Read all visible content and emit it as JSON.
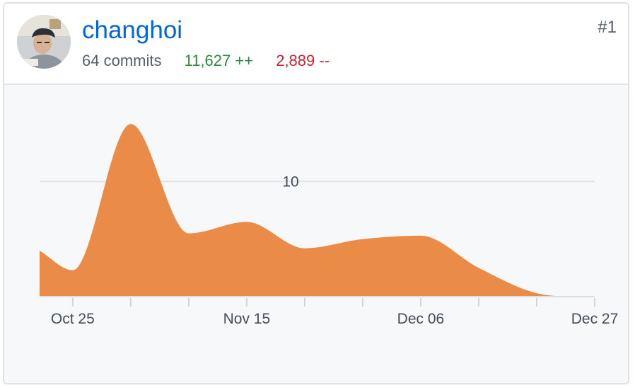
{
  "contributor": {
    "username": "changhoi",
    "commits": "64 commits",
    "additions": "11,627 ++",
    "deletions": "2,889 --",
    "rank": "#1"
  },
  "colors": {
    "area": "#ea8b48",
    "link": "#0366d6",
    "additions": "#2c8a3f",
    "deletions": "#cb2431"
  },
  "chart_data": {
    "type": "area",
    "x_start": "Oct 21",
    "x_end": "Dec 27",
    "x_ticks": [
      "Oct 25",
      "Nov 15",
      "Dec 06",
      "Dec 27"
    ],
    "y_gridline": 10,
    "y_tick_labels": [
      "10"
    ],
    "ylim": [
      0,
      15.5
    ],
    "points": [
      {
        "x": "Oct 21",
        "y": 4.0
      },
      {
        "x": "Oct 25",
        "y": 2.3
      },
      {
        "x": "Nov 01",
        "y": 15.0
      },
      {
        "x": "Nov 08",
        "y": 5.5
      },
      {
        "x": "Nov 15",
        "y": 6.5
      },
      {
        "x": "Nov 22",
        "y": 4.2
      },
      {
        "x": "Nov 29",
        "y": 5.0
      },
      {
        "x": "Dec 06",
        "y": 5.3
      },
      {
        "x": "Dec 13",
        "y": 2.5
      },
      {
        "x": "Dec 20",
        "y": 0.3
      },
      {
        "x": "Dec 27",
        "y": 0
      }
    ]
  }
}
